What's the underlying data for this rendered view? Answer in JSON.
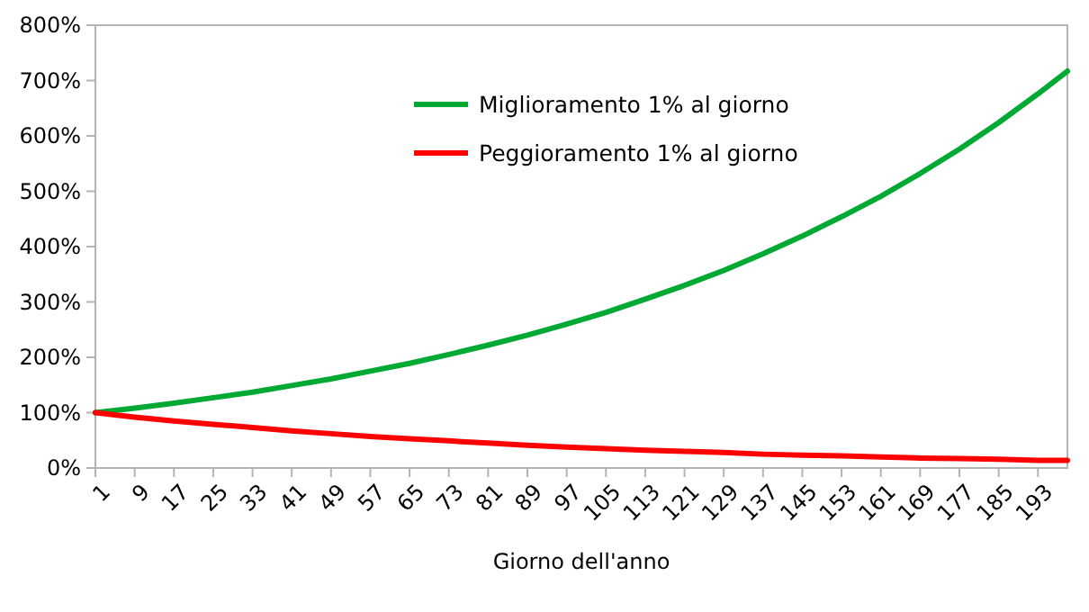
{
  "chart_data": {
    "type": "line",
    "xlabel": "Giorno dell'anno",
    "x": [
      1,
      9,
      17,
      25,
      33,
      41,
      49,
      57,
      65,
      73,
      81,
      89,
      97,
      105,
      113,
      121,
      129,
      137,
      145,
      153,
      161,
      169,
      177,
      185,
      193,
      199
    ],
    "xlim": [
      1,
      199
    ],
    "xticks": [
      1,
      9,
      17,
      25,
      33,
      41,
      49,
      57,
      65,
      73,
      81,
      89,
      97,
      105,
      113,
      121,
      129,
      137,
      145,
      153,
      161,
      169,
      177,
      185,
      193
    ],
    "ylim": [
      0,
      800
    ],
    "yticks": [
      {
        "value": 0,
        "label": "0%"
      },
      {
        "value": 100,
        "label": "100%"
      },
      {
        "value": 200,
        "label": "200%"
      },
      {
        "value": 300,
        "label": "300%"
      },
      {
        "value": 400,
        "label": "400%"
      },
      {
        "value": 500,
        "label": "500%"
      },
      {
        "value": 600,
        "label": "600%"
      },
      {
        "value": 700,
        "label": "700%"
      },
      {
        "value": 800,
        "label": "800%"
      }
    ],
    "series": [
      {
        "name": "Miglioramento 1% al giorno",
        "color": "#00a933",
        "values": [
          100,
          108,
          117,
          127,
          137,
          149,
          161,
          175,
          189,
          205,
          222,
          240,
          260,
          281,
          305,
          330,
          357,
          387,
          419,
          454,
          491,
          532,
          576,
          624,
          676,
          717
        ]
      },
      {
        "name": "Peggioramento 1% al giorno",
        "color": "#ff0000",
        "values": [
          100,
          92,
          85,
          79,
          73,
          67,
          62,
          57,
          53,
          49,
          45,
          41,
          38,
          35,
          32,
          30,
          28,
          25,
          23,
          22,
          20,
          18,
          17,
          16,
          14,
          14
        ]
      }
    ],
    "legend": "top",
    "grid": false,
    "marker": "none",
    "line_style": "solid"
  }
}
